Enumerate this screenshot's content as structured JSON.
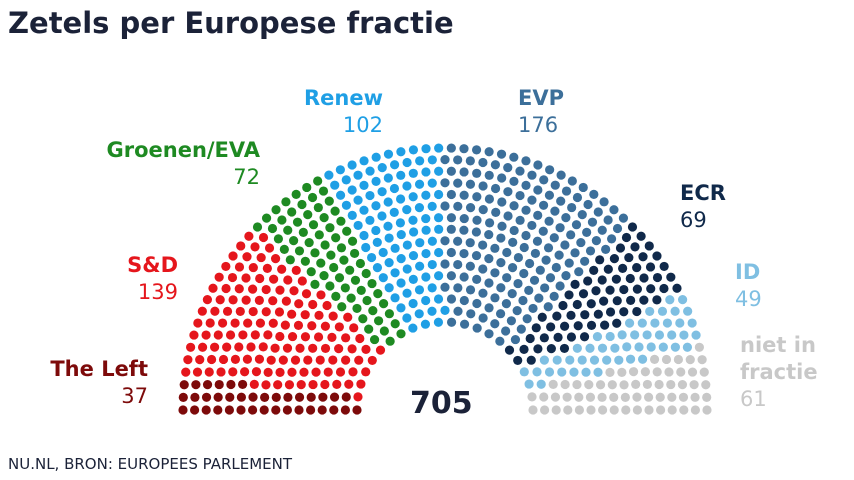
{
  "chart_data": {
    "type": "parliament",
    "title": "Zetels per Europese fractie",
    "categories": [
      "The Left",
      "S&D",
      "Groenen/EVA",
      "Renew",
      "EVP",
      "ECR",
      "ID",
      "niet in fractie"
    ],
    "values": [
      37,
      139,
      72,
      102,
      176,
      69,
      49,
      61
    ],
    "colors": [
      "#7d0a0a",
      "#e5161c",
      "#1e8a22",
      "#1f9fe5",
      "#3c6f9a",
      "#10294a",
      "#7fbfe2",
      "#c8c8c8"
    ],
    "total": 705,
    "source": "NU.NL, BRON: EUROPEES PARLEMENT"
  }
}
